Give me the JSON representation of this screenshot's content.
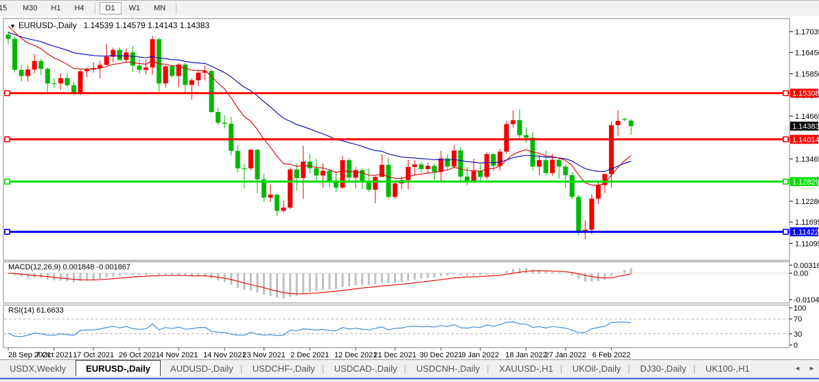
{
  "toolbar": {
    "timeframes": [
      {
        "label": "15",
        "active": false
      },
      {
        "label": "M30",
        "active": false
      },
      {
        "label": "H1",
        "active": false
      },
      {
        "label": "H4",
        "active": false
      },
      {
        "label": "D1",
        "active": true
      },
      {
        "label": "W1",
        "active": false
      },
      {
        "label": "MN",
        "active": false
      }
    ]
  },
  "icons": {
    "dropdown": "▼",
    "scroll_left": "◄",
    "scroll_right": "►"
  },
  "chart": {
    "symbol": "EURUSD-,Daily",
    "ohlc_text": "1.14539 1.14579 1.14143 1.14383"
  },
  "indicators": {
    "macd": {
      "name": "MACD(12,26,9)",
      "values": "0.001848 -0.001867",
      "axis": [
        "0.003165",
        "0.00",
        "-0.01043"
      ]
    },
    "rsi": {
      "name": "RSI(14)",
      "value": "61.6633",
      "axis": [
        "100",
        "70",
        "30",
        "0"
      ],
      "levels": [
        70,
        30
      ]
    }
  },
  "chart_data": {
    "type": "candlestick",
    "title": "EURUSD-,Daily",
    "current_bar": {
      "open": 1.14539,
      "high": 1.14579,
      "low": 1.14143,
      "close": 1.14383
    },
    "ylim": [
      1.1062,
      1.1738
    ],
    "y_ticks": [
      "1.17035",
      "1.16450",
      "1.15850",
      "1.15250",
      "1.14665",
      "1.14065",
      "1.13465",
      "1.12885",
      "1.12280",
      "1.11695",
      "1.11095"
    ],
    "price_badge": {
      "value": "1.14383",
      "color": "#000000"
    },
    "hlines": [
      {
        "value": "1.15308",
        "price": 1.15308,
        "color": "#ff0000"
      },
      {
        "value": "1.14014",
        "price": 1.14014,
        "color": "#ff0000"
      },
      {
        "value": "1.12829",
        "price": 1.12829,
        "color": "#00dd00"
      },
      {
        "value": "1.11422",
        "price": 1.11422,
        "color": "#0000ff"
      }
    ],
    "x_dates": [
      "28 Sep 2021",
      "7 Oct 2021",
      "17 Oct 2021",
      "26 Oct 2021",
      "4 Nov 2021",
      "14 Nov 2021",
      "23 Nov 2021",
      "2 Dec 2021",
      "12 Dec 2021",
      "21 Dec 2021",
      "30 Dec 2021",
      "9 Jan 2022",
      "18 Jan 2022",
      "27 Jan 2022",
      "6 Feb 2022"
    ],
    "x_tick_indices": [
      0,
      7,
      13,
      20,
      26,
      33,
      39,
      46,
      53,
      59,
      66,
      72,
      79,
      85,
      92
    ],
    "colors": {
      "bull": "#f20000",
      "bear": "#00b800",
      "ma_fast": "#d40000",
      "ma_slow": "#0000bb",
      "macd_hist": "#c0c0c0",
      "macd_signal": "#e60000",
      "rsi_line": "#3f8fde",
      "level_dash": "#b0b0b0"
    },
    "macd_scale": {
      "max": 0.003165,
      "min": -0.01043
    },
    "ohlc": [
      [
        1.1695,
        1.1705,
        1.1667,
        1.1683
      ],
      [
        1.1683,
        1.169,
        1.1589,
        1.1596
      ],
      [
        1.1596,
        1.161,
        1.1563,
        1.1579
      ],
      [
        1.1579,
        1.1608,
        1.1563,
        1.1597
      ],
      [
        1.1597,
        1.164,
        1.1586,
        1.1621
      ],
      [
        1.1621,
        1.1627,
        1.1581,
        1.1599
      ],
      [
        1.1599,
        1.1603,
        1.1529,
        1.1558
      ],
      [
        1.1559,
        1.1572,
        1.1546,
        1.1558
      ],
      [
        1.1558,
        1.1586,
        1.1541,
        1.1573
      ],
      [
        1.1573,
        1.1586,
        1.1549,
        1.1553
      ],
      [
        1.1553,
        1.1563,
        1.1524,
        1.153
      ],
      [
        1.153,
        1.1597,
        1.1525,
        1.1592
      ],
      [
        1.1592,
        1.1602,
        1.1575,
        1.1597
      ],
      [
        1.1597,
        1.1618,
        1.1588,
        1.1601
      ],
      [
        1.1601,
        1.1621,
        1.1572,
        1.161
      ],
      [
        1.161,
        1.1669,
        1.1609,
        1.1633
      ],
      [
        1.1633,
        1.1658,
        1.1617,
        1.1652
      ],
      [
        1.1652,
        1.1659,
        1.1622,
        1.1624
      ],
      [
        1.1624,
        1.1656,
        1.162,
        1.1645
      ],
      [
        1.1645,
        1.1663,
        1.1591,
        1.1608
      ],
      [
        1.1608,
        1.1626,
        1.1585,
        1.1596
      ],
      [
        1.1596,
        1.1626,
        1.1583,
        1.1603
      ],
      [
        1.1603,
        1.1692,
        1.1582,
        1.1682
      ],
      [
        1.1682,
        1.1686,
        1.1535,
        1.1558
      ],
      [
        1.1558,
        1.1609,
        1.1546,
        1.1606
      ],
      [
        1.1606,
        1.161,
        1.1575,
        1.1579
      ],
      [
        1.1579,
        1.1616,
        1.1548,
        1.1611
      ],
      [
        1.1611,
        1.1617,
        1.1528,
        1.1554
      ],
      [
        1.1554,
        1.1573,
        1.1513,
        1.1567
      ],
      [
        1.1567,
        1.1596,
        1.1551,
        1.1588
      ],
      [
        1.1588,
        1.1609,
        1.1567,
        1.1593
      ],
      [
        1.1593,
        1.1598,
        1.1475,
        1.1478
      ],
      [
        1.1478,
        1.1489,
        1.1441,
        1.1448
      ],
      [
        1.1448,
        1.1468,
        1.1432,
        1.1445
      ],
      [
        1.1445,
        1.1464,
        1.1356,
        1.1369
      ],
      [
        1.1369,
        1.1386,
        1.1309,
        1.132
      ],
      [
        1.132,
        1.1332,
        1.1263,
        1.1319
      ],
      [
        1.132,
        1.1374,
        1.1314,
        1.1372
      ],
      [
        1.1372,
        1.1374,
        1.125,
        1.1289
      ],
      [
        1.1289,
        1.1305,
        1.1226,
        1.1238
      ],
      [
        1.1238,
        1.1275,
        1.1226,
        1.1246
      ],
      [
        1.1246,
        1.125,
        1.1186,
        1.1201
      ],
      [
        1.1201,
        1.123,
        1.1196,
        1.121
      ],
      [
        1.121,
        1.1323,
        1.1206,
        1.1317
      ],
      [
        1.1317,
        1.1333,
        1.1258,
        1.1293
      ],
      [
        1.1293,
        1.1383,
        1.1235,
        1.1339
      ],
      [
        1.1339,
        1.136,
        1.1305,
        1.132
      ],
      [
        1.132,
        1.1348,
        1.1285,
        1.13
      ],
      [
        1.13,
        1.1334,
        1.1266,
        1.1313
      ],
      [
        1.1313,
        1.1318,
        1.1267,
        1.1284
      ],
      [
        1.1284,
        1.1311,
        1.1253,
        1.1266
      ],
      [
        1.1266,
        1.1355,
        1.1263,
        1.1343
      ],
      [
        1.1343,
        1.1349,
        1.128,
        1.1294
      ],
      [
        1.1294,
        1.1324,
        1.1264,
        1.1315
      ],
      [
        1.1315,
        1.132,
        1.1261,
        1.1285
      ],
      [
        1.1285,
        1.132,
        1.1254,
        1.126
      ],
      [
        1.126,
        1.1298,
        1.1222,
        1.1296
      ],
      [
        1.1296,
        1.136,
        1.1296,
        1.133
      ],
      [
        1.133,
        1.135,
        1.1236,
        1.124
      ],
      [
        1.124,
        1.1283,
        1.1234,
        1.1278
      ],
      [
        1.1278,
        1.1298,
        1.1262,
        1.1287
      ],
      [
        1.1287,
        1.1344,
        1.1262,
        1.1324
      ],
      [
        1.1324,
        1.1343,
        1.1301,
        1.1331
      ],
      [
        1.1331,
        1.1338,
        1.1308,
        1.1318
      ],
      [
        1.1318,
        1.1336,
        1.1305,
        1.1327
      ],
      [
        1.1327,
        1.1333,
        1.1287,
        1.131
      ],
      [
        1.131,
        1.1369,
        1.1285,
        1.1348
      ],
      [
        1.1348,
        1.136,
        1.1316,
        1.1325
      ],
      [
        1.1325,
        1.1386,
        1.1321,
        1.137
      ],
      [
        1.137,
        1.1379,
        1.1279,
        1.1297
      ],
      [
        1.1297,
        1.1324,
        1.1272,
        1.1285
      ],
      [
        1.1285,
        1.1347,
        1.128,
        1.1312
      ],
      [
        1.1312,
        1.1332,
        1.1285,
        1.1296
      ],
      [
        1.1296,
        1.1365,
        1.1289,
        1.136
      ],
      [
        1.136,
        1.1362,
        1.1313,
        1.1327
      ],
      [
        1.1327,
        1.1375,
        1.1314,
        1.1367
      ],
      [
        1.1367,
        1.1453,
        1.136,
        1.1444
      ],
      [
        1.1444,
        1.1482,
        1.1435,
        1.1455
      ],
      [
        1.1455,
        1.1484,
        1.1399,
        1.1413
      ],
      [
        1.1413,
        1.1435,
        1.1392,
        1.1406
      ],
      [
        1.1406,
        1.1422,
        1.1314,
        1.1325
      ],
      [
        1.1325,
        1.1357,
        1.1301,
        1.1343
      ],
      [
        1.1343,
        1.1369,
        1.13,
        1.1307
      ],
      [
        1.1307,
        1.136,
        1.13,
        1.1344
      ],
      [
        1.1344,
        1.1349,
        1.129,
        1.1325
      ],
      [
        1.1325,
        1.1331,
        1.1264,
        1.1301
      ],
      [
        1.1301,
        1.131,
        1.1234,
        1.124
      ],
      [
        1.124,
        1.1246,
        1.1131,
        1.1144
      ],
      [
        1.1144,
        1.1174,
        1.1121,
        1.1148
      ],
      [
        1.1148,
        1.1248,
        1.1135,
        1.1235
      ],
      [
        1.1235,
        1.1283,
        1.122,
        1.1273
      ],
      [
        1.1273,
        1.1306,
        1.1251,
        1.1304
      ],
      [
        1.1304,
        1.1452,
        1.1267,
        1.1441
      ],
      [
        1.1441,
        1.1483,
        1.1412,
        1.1453
      ],
      [
        1.14585,
        1.1462,
        1.1452,
        1.1458
      ],
      [
        1.14539,
        1.14579,
        1.14143,
        1.14383
      ]
    ]
  },
  "tabs": {
    "items": [
      {
        "label": "USDX,Weekly",
        "active": false
      },
      {
        "label": "EURUSD-,Daily",
        "active": true
      },
      {
        "label": "AUDUSD-,Daily",
        "active": false
      },
      {
        "label": "USDCHF-,Daily",
        "active": false
      },
      {
        "label": "USDCAD-,Daily",
        "active": false
      },
      {
        "label": "USDCNH-,Daily",
        "active": false
      },
      {
        "label": "XAUUSD-,H1",
        "active": false
      },
      {
        "label": "UKOil-,Daily",
        "active": false
      },
      {
        "label": "DJ30-,Daily",
        "active": false
      },
      {
        "label": "UK100-,H1",
        "active": false
      }
    ]
  }
}
